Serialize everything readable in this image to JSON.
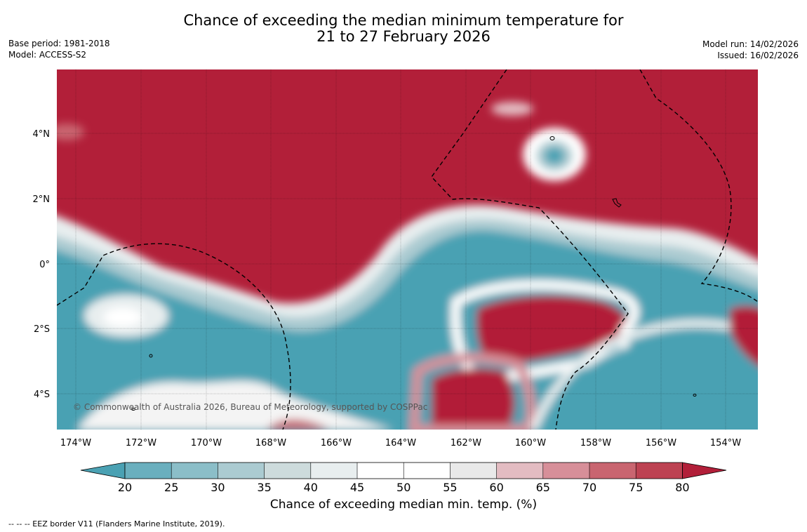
{
  "title": {
    "line1": "Chance of exceeding the median minimum temperature for",
    "line2": "21 to 27 February 2026"
  },
  "meta_left": {
    "base_period": "Base period: 1981-2018",
    "model": "Model: ACCESS-S2"
  },
  "meta_right": {
    "model_run": "Model run: 14/02/2026",
    "issued": "Issued: 16/02/2026"
  },
  "map": {
    "lat_labels": [
      "4°N",
      "2°N",
      "0°",
      "2°S",
      "4°S"
    ],
    "lon_labels": [
      "174°W",
      "172°W",
      "170°W",
      "168°W",
      "166°W",
      "164°W",
      "162°W",
      "160°W",
      "158°W",
      "156°W",
      "154°W"
    ],
    "copyright": "© Commonwealth of Australia 2026, Bureau of Meteorology, supported by COSPPac"
  },
  "colorbar": {
    "colors": {
      "below_20": "#4aa1b3",
      "20_25": "#6aafbe",
      "25_30": "#8bbec8",
      "30_35": "#abcbd1",
      "35_40": "#cddbdc",
      "40_45": "#e8eeef",
      "45_50": "#ffffff",
      "50_55": "#ffffff",
      "55_60": "#e9e9e9",
      "60_65": "#e3bcc2",
      "65_70": "#d78f99",
      "70_75": "#c96570",
      "75_80": "#bd4252",
      "above_80": "#b21f39"
    },
    "ticks": [
      "20",
      "25",
      "30",
      "35",
      "40",
      "45",
      "50",
      "55",
      "60",
      "65",
      "70",
      "75",
      "80"
    ],
    "label": "Chance of exceeding median min. temp. (%)"
  },
  "footer": {
    "eez_note": "--  --  -- EEZ border V11 (Flanders Marine Institute, 2019)."
  }
}
